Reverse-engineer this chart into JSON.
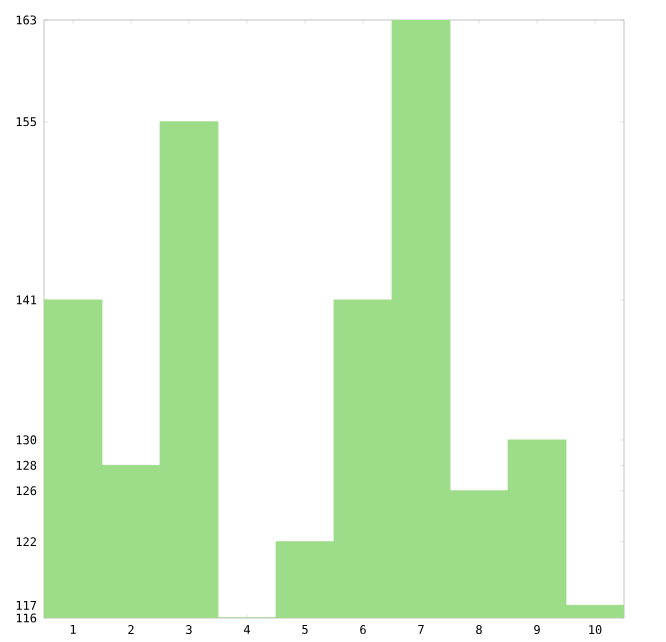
{
  "chart_data": {
    "type": "bar",
    "categories": [
      "1",
      "2",
      "3",
      "4",
      "5",
      "6",
      "7",
      "8",
      "9",
      "10"
    ],
    "values": [
      141,
      128,
      155,
      116,
      122,
      141,
      163,
      126,
      130,
      117
    ],
    "color": "#9ddc88",
    "ylim": [
      116,
      163
    ],
    "yticks": [
      116,
      117,
      122,
      126,
      128,
      130,
      141,
      155,
      163
    ],
    "grid": false
  }
}
